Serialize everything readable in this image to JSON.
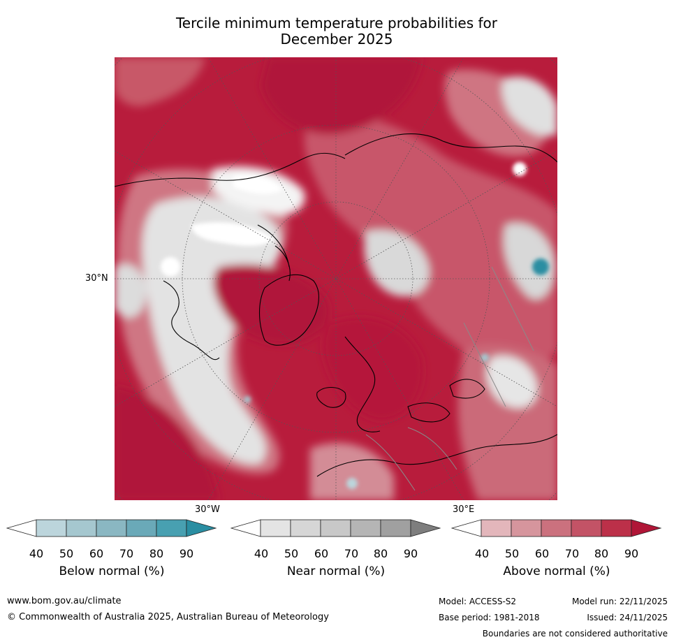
{
  "title_line1": "Tercile minimum temperature probabilities for",
  "title_line2": "December 2025",
  "map": {
    "projection": "north-polar-stereographic",
    "lat_label": "30°N",
    "lon_labels": [
      "30°W",
      "30°E"
    ],
    "colors": {
      "ocean_dominant": "#b81c3c",
      "land_outline": "#000000",
      "border": "#888888"
    }
  },
  "colorbars": [
    {
      "name": "below",
      "title": "Below normal (%)",
      "ticks": [
        "40",
        "50",
        "60",
        "70",
        "80",
        "90"
      ],
      "colors": [
        "#ffffff",
        "#bcd5dc",
        "#a5c7cf",
        "#8ab7c2",
        "#6aa9b8",
        "#48a0b1",
        "#2a8ea2"
      ]
    },
    {
      "name": "near",
      "title": "Near normal (%)",
      "ticks": [
        "40",
        "50",
        "60",
        "70",
        "80",
        "90"
      ],
      "colors": [
        "#ffffff",
        "#e4e4e4",
        "#d6d6d6",
        "#c8c8c8",
        "#b5b5b5",
        "#a0a0a0",
        "#7e7e7e"
      ]
    },
    {
      "name": "above",
      "title": "Above normal (%)",
      "ticks": [
        "40",
        "50",
        "60",
        "70",
        "80",
        "90"
      ],
      "colors": [
        "#ffffff",
        "#e3b6bb",
        "#d6959d",
        "#cb717e",
        "#c35366",
        "#bc3049",
        "#b01637"
      ]
    }
  ],
  "footer": {
    "website": "www.bom.gov.au/climate",
    "copyright": "© Commonwealth of Australia 2025, Australian Bureau of Meteorology",
    "model": "Model: ACCESS-S2",
    "base_period": "Base period: 1981-2018",
    "model_run": "Model run: 22/11/2025",
    "issued": "Issued: 24/11/2025",
    "disclaimer": "Boundaries are not considered authoritative"
  }
}
